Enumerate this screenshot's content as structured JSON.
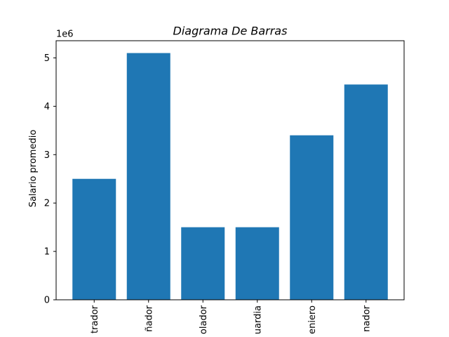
{
  "chart_data": {
    "type": "bar",
    "title": "Diagrama De Barras",
    "xlabel": "",
    "ylabel": "Salario promedio",
    "y_offset_label": "1e6",
    "y_multiplier": 1000000,
    "categories": [
      "trador",
      "ñador",
      "olador",
      "uardia",
      "eniero",
      "nador"
    ],
    "values": [
      2500000,
      5100000,
      1500000,
      1500000,
      3400000,
      4450000
    ],
    "ylim": [
      0,
      5355000
    ],
    "yticks": [
      0,
      1,
      2,
      3,
      4,
      5
    ],
    "grid": false,
    "bar_color": "#1f77b4"
  }
}
